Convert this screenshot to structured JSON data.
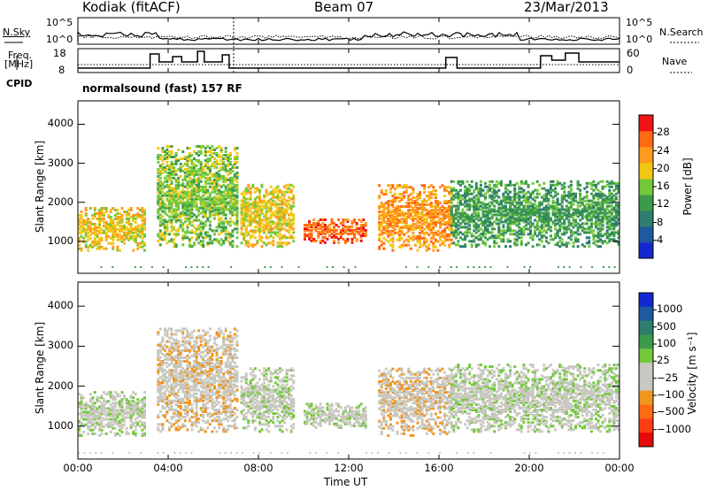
{
  "header": {
    "station": "Kodiak (fitACF)",
    "beam": "Beam 07",
    "date": "23/Mar/2013"
  },
  "top_panels": {
    "nsky_label": "N.Sky",
    "nsky_ticks": [
      "10^5",
      "10^0"
    ],
    "nsearch_label": "N.Search",
    "nsearch_ticks": [
      "10^5",
      "10^0"
    ],
    "freq_label_1": "Freq.",
    "freq_label_2": "[MHz]",
    "freq_ticks": [
      "18",
      "8"
    ],
    "nave_label": "Nave",
    "nave_ticks": [
      "60",
      "0"
    ],
    "cpid_label": "CPID",
    "cpid_text": "normalsound (fast) 157 RF"
  },
  "colors": {
    "power": [
      "#1428d2",
      "#1e5aa0",
      "#2e7d6e",
      "#3c9b4b",
      "#74c83c",
      "#f0c814",
      "#ff9b1e",
      "#ff6a14",
      "#f01414"
    ],
    "velocity": [
      "#1428d2",
      "#1e5aa0",
      "#2e7d6e",
      "#3c9b4b",
      "#74c83c",
      "#c8c8c0",
      "#c8c8c0",
      "#f0961e",
      "#ff6a14",
      "#ff3c14",
      "#e60a0a"
    ]
  },
  "chart_data": [
    {
      "type": "heatmap",
      "title": "",
      "xlabel": "",
      "ylabel": "Slant Range [km]",
      "xlim": [
        "00:00",
        "24:00"
      ],
      "ylim": [
        180,
        4600
      ],
      "y_ticks": [
        "1000",
        "2000",
        "3000",
        "4000"
      ],
      "colorbar_label": "Power [dB]",
      "colorbar_ticks": [
        "4",
        "8",
        "12",
        "16",
        "20",
        "24",
        "28"
      ],
      "echo_regions": [
        {
          "t_start": 0.0,
          "t_end": 3.0,
          "range_km": [
            800,
            1900
          ],
          "value_db": 20
        },
        {
          "t_start": 3.5,
          "t_end": 7.0,
          "range_km": [
            900,
            3500
          ],
          "value_db": 14
        },
        {
          "t_start": 7.2,
          "t_end": 9.5,
          "range_km": [
            900,
            2500
          ],
          "value_db": 18
        },
        {
          "t_start": 10.0,
          "t_end": 12.7,
          "range_km": [
            1000,
            1600
          ],
          "value_db": 28
        },
        {
          "t_start": 13.3,
          "t_end": 16.5,
          "range_km": [
            800,
            2500
          ],
          "value_db": 22
        },
        {
          "t_start": 16.5,
          "t_end": 24.0,
          "range_km": [
            900,
            2600
          ],
          "value_db": 12
        }
      ]
    },
    {
      "type": "heatmap",
      "title": "",
      "xlabel": "Time UT",
      "ylabel": "Slant Range [km]",
      "xlim": [
        "00:00",
        "24:00"
      ],
      "ylim": [
        180,
        4600
      ],
      "x_ticks": [
        "00:00",
        "04:00",
        "08:00",
        "12:00",
        "16:00",
        "20:00",
        "00:00"
      ],
      "y_ticks": [
        "1000",
        "2000",
        "3000",
        "4000"
      ],
      "colorbar_label": "Velocity [m s⁻¹]",
      "colorbar_ticks": [
        "1000",
        "500",
        "100",
        "25",
        "−25",
        "−100",
        "−500",
        "−1000"
      ],
      "echo_regions": [
        {
          "t_start": 0.0,
          "t_end": 3.0,
          "range_km": [
            800,
            1900
          ],
          "value_ms": 0
        },
        {
          "t_start": 3.5,
          "t_end": 7.0,
          "range_km": [
            900,
            3500
          ],
          "value_ms": -150
        },
        {
          "t_start": 7.2,
          "t_end": 9.5,
          "range_km": [
            900,
            2500
          ],
          "value_ms": 80
        },
        {
          "t_start": 10.0,
          "t_end": 12.7,
          "range_km": [
            1000,
            1600
          ],
          "value_ms": 60
        },
        {
          "t_start": 13.3,
          "t_end": 16.5,
          "range_km": [
            800,
            2500
          ],
          "value_ms": -250
        },
        {
          "t_start": 16.5,
          "t_end": 24.0,
          "range_km": [
            900,
            2600
          ],
          "value_ms": 0
        }
      ]
    }
  ]
}
